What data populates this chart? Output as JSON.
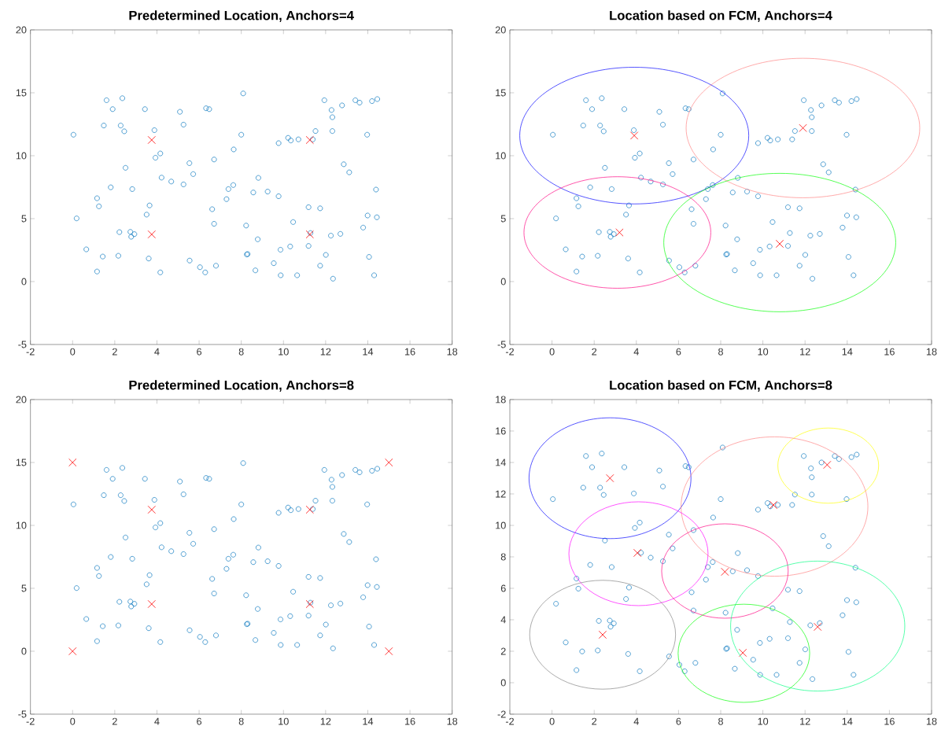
{
  "chart_data": [
    {
      "type": "scatter",
      "title": "Predetermined Location, Anchors=4",
      "xlim": [
        -2,
        18
      ],
      "ylim": [
        -5,
        20
      ],
      "xticks": [
        -2,
        0,
        2,
        4,
        6,
        8,
        10,
        12,
        14,
        16,
        18
      ],
      "yticks": [
        -5,
        0,
        5,
        10,
        15,
        20
      ],
      "series": [
        {
          "marker": "circle",
          "color": "#0072bd",
          "x": [
            0.04,
            0.19,
            0.65,
            1.16,
            1.16,
            1.25,
            1.43,
            1.48,
            1.61,
            1.9,
            1.81,
            2.17,
            2.22,
            2.28,
            2.36,
            2.45,
            2.51,
            2.74,
            2.78,
            2.93,
            2.83,
            3.43,
            3.51,
            3.61,
            3.65,
            3.88,
            3.93,
            4.16,
            4.16,
            4.22,
            4.68,
            5.09,
            5.26,
            5.26,
            5.54,
            5.55,
            5.72,
            6.04,
            6.29,
            6.33,
            6.48,
            6.62,
            6.71,
            6.71,
            6.8,
            7.3,
            7.39,
            7.62,
            7.64,
            8.0,
            8.09,
            8.23,
            8.26,
            8.3,
            8.57,
            8.67,
            8.78,
            8.81,
            9.25,
            9.54,
            9.77,
            9.77,
            9.86,
            9.87,
            10.22,
            10.35,
            10.32,
            10.46,
            10.65,
            10.71,
            11.19,
            11.19,
            11.28,
            11.39,
            11.52,
            11.74,
            11.74,
            11.94,
            12.01,
            12.25,
            12.28,
            12.32,
            12.32,
            12.35,
            12.7,
            12.78,
            12.86,
            13.12,
            13.41,
            13.61,
            13.78,
            13.97,
            13.99,
            14.06,
            14.2,
            14.3,
            14.39,
            14.43,
            14.45
          ],
          "values": [
            11.67,
            5.02,
            2.56,
            0.8,
            6.62,
            5.98,
            1.99,
            12.4,
            14.41,
            13.7,
            7.49,
            2.05,
            3.93,
            12.4,
            14.57,
            11.94,
            9.04,
            3.95,
            3.56,
            3.77,
            7.35,
            13.7,
            5.32,
            1.83,
            6.05,
            12.03,
            9.84,
            10.18,
            0.73,
            8.26,
            7.95,
            13.49,
            12.47,
            7.72,
            9.41,
            1.67,
            8.54,
            1.14,
            0.73,
            13.77,
            13.7,
            5.75,
            4.59,
            9.7,
            1.26,
            6.55,
            7.35,
            7.67,
            10.5,
            11.67,
            14.95,
            4.45,
            2.15,
            2.19,
            7.08,
            0.89,
            3.36,
            8.24,
            7.15,
            1.46,
            6.78,
            11.0,
            2.53,
            0.5,
            11.42,
            11.21,
            2.79,
            4.73,
            0.5,
            11.3,
            5.91,
            2.83,
            3.86,
            11.3,
            11.96,
            5.82,
            1.26,
            14.41,
            2.12,
            3.65,
            13.63,
            13.06,
            11.96,
            0.23,
            3.79,
            14.0,
            9.32,
            8.68,
            14.41,
            14.22,
            4.29,
            11.67,
            5.25,
            1.96,
            14.34,
            0.5,
            7.31,
            5.11,
            14.5
          ]
        },
        {
          "marker": "cross",
          "color": "#ff0000",
          "x": [
            3.75,
            11.25,
            3.75,
            11.25
          ],
          "values": [
            11.25,
            11.25,
            3.75,
            3.75
          ]
        }
      ]
    },
    {
      "type": "scatter",
      "title": "Location based on FCM, Anchors=4",
      "xlim": [
        -2,
        18
      ],
      "ylim": [
        -5,
        20
      ],
      "xticks": [
        -2,
        0,
        2,
        4,
        6,
        8,
        10,
        12,
        14,
        16,
        18
      ],
      "yticks": [
        -5,
        0,
        5,
        10,
        15,
        20
      ],
      "series": [
        {
          "marker": "circle",
          "color": "#0072bd",
          "x": [
            0.04,
            0.19,
            0.65,
            1.16,
            1.16,
            1.25,
            1.43,
            1.48,
            1.61,
            1.9,
            1.81,
            2.17,
            2.22,
            2.28,
            2.36,
            2.45,
            2.51,
            2.74,
            2.78,
            2.93,
            2.83,
            3.43,
            3.51,
            3.61,
            3.65,
            3.88,
            3.93,
            4.16,
            4.16,
            4.22,
            4.68,
            5.09,
            5.26,
            5.26,
            5.54,
            5.55,
            5.72,
            6.04,
            6.29,
            6.33,
            6.48,
            6.62,
            6.71,
            6.71,
            6.8,
            7.3,
            7.39,
            7.62,
            7.64,
            8.0,
            8.09,
            8.23,
            8.26,
            8.3,
            8.57,
            8.67,
            8.78,
            8.81,
            9.25,
            9.54,
            9.77,
            9.77,
            9.86,
            9.87,
            10.22,
            10.35,
            10.32,
            10.46,
            10.65,
            10.71,
            11.19,
            11.19,
            11.28,
            11.39,
            11.52,
            11.74,
            11.74,
            11.94,
            12.01,
            12.25,
            12.28,
            12.32,
            12.32,
            12.35,
            12.7,
            12.78,
            12.86,
            13.12,
            13.41,
            13.61,
            13.78,
            13.97,
            13.99,
            14.06,
            14.2,
            14.3,
            14.39,
            14.43,
            14.45
          ],
          "values": [
            11.67,
            5.02,
            2.56,
            0.8,
            6.62,
            5.98,
            1.99,
            12.4,
            14.41,
            13.7,
            7.49,
            2.05,
            3.93,
            12.4,
            14.57,
            11.94,
            9.04,
            3.95,
            3.56,
            3.77,
            7.35,
            13.7,
            5.32,
            1.83,
            6.05,
            12.03,
            9.84,
            10.18,
            0.73,
            8.26,
            7.95,
            13.49,
            12.47,
            7.72,
            9.41,
            1.67,
            8.54,
            1.14,
            0.73,
            13.77,
            13.7,
            5.75,
            4.59,
            9.7,
            1.26,
            6.55,
            7.35,
            7.67,
            10.5,
            11.67,
            14.95,
            4.45,
            2.15,
            2.19,
            7.08,
            0.89,
            3.36,
            8.24,
            7.15,
            1.46,
            6.78,
            11.0,
            2.53,
            0.5,
            11.42,
            11.21,
            2.79,
            4.73,
            0.5,
            11.3,
            5.91,
            2.83,
            3.86,
            11.3,
            11.96,
            5.82,
            1.26,
            14.41,
            2.12,
            3.65,
            13.63,
            13.06,
            11.96,
            0.23,
            3.79,
            14.0,
            9.32,
            8.68,
            14.41,
            14.22,
            4.29,
            11.67,
            5.25,
            1.96,
            14.34,
            0.5,
            7.31,
            5.11,
            14.5
          ]
        },
        {
          "marker": "cross",
          "color": "#ff0000",
          "x": [
            3.9,
            11.9,
            3.2,
            10.8
          ],
          "values": [
            11.6,
            12.2,
            3.9,
            3.0
          ]
        }
      ]
    },
    {
      "type": "scatter",
      "title": "Predetermined Location, Anchors=8",
      "xlim": [
        -2,
        18
      ],
      "ylim": [
        -5,
        20
      ],
      "xticks": [
        -2,
        0,
        2,
        4,
        6,
        8,
        10,
        12,
        14,
        16,
        18
      ],
      "yticks": [
        -5,
        0,
        5,
        10,
        15,
        20
      ],
      "series": [
        {
          "marker": "circle",
          "color": "#0072bd",
          "x": [
            0.04,
            0.19,
            0.65,
            1.16,
            1.16,
            1.25,
            1.43,
            1.48,
            1.61,
            1.9,
            1.81,
            2.17,
            2.22,
            2.28,
            2.36,
            2.45,
            2.51,
            2.74,
            2.78,
            2.93,
            2.83,
            3.43,
            3.51,
            3.61,
            3.65,
            3.88,
            3.93,
            4.16,
            4.16,
            4.22,
            4.68,
            5.09,
            5.26,
            5.26,
            5.54,
            5.55,
            5.72,
            6.04,
            6.29,
            6.33,
            6.48,
            6.62,
            6.71,
            6.71,
            6.8,
            7.3,
            7.39,
            7.62,
            7.64,
            8.0,
            8.09,
            8.23,
            8.26,
            8.3,
            8.57,
            8.67,
            8.78,
            8.81,
            9.25,
            9.54,
            9.77,
            9.77,
            9.86,
            9.87,
            10.22,
            10.35,
            10.32,
            10.46,
            10.65,
            10.71,
            11.19,
            11.19,
            11.28,
            11.39,
            11.52,
            11.74,
            11.74,
            11.94,
            12.01,
            12.25,
            12.28,
            12.32,
            12.32,
            12.35,
            12.7,
            12.78,
            12.86,
            13.12,
            13.41,
            13.61,
            13.78,
            13.97,
            13.99,
            14.06,
            14.2,
            14.3,
            14.39,
            14.43,
            14.45
          ],
          "values": [
            11.67,
            5.02,
            2.56,
            0.8,
            6.62,
            5.98,
            1.99,
            12.4,
            14.41,
            13.7,
            7.49,
            2.05,
            3.93,
            12.4,
            14.57,
            11.94,
            9.04,
            3.95,
            3.56,
            3.77,
            7.35,
            13.7,
            5.32,
            1.83,
            6.05,
            12.03,
            9.84,
            10.18,
            0.73,
            8.26,
            7.95,
            13.49,
            12.47,
            7.72,
            9.41,
            1.67,
            8.54,
            1.14,
            0.73,
            13.77,
            13.7,
            5.75,
            4.59,
            9.7,
            1.26,
            6.55,
            7.35,
            7.67,
            10.5,
            11.67,
            14.95,
            4.45,
            2.15,
            2.19,
            7.08,
            0.89,
            3.36,
            8.24,
            7.15,
            1.46,
            6.78,
            11.0,
            2.53,
            0.5,
            11.42,
            11.21,
            2.79,
            4.73,
            0.5,
            11.3,
            5.91,
            2.83,
            3.86,
            11.3,
            11.96,
            5.82,
            1.26,
            14.41,
            2.12,
            3.65,
            13.63,
            13.06,
            11.96,
            0.23,
            3.79,
            14.0,
            9.32,
            8.68,
            14.41,
            14.22,
            4.29,
            11.67,
            5.25,
            1.96,
            14.34,
            0.5,
            7.31,
            5.11,
            14.5
          ]
        },
        {
          "marker": "cross",
          "color": "#ff0000",
          "x": [
            0,
            0,
            15,
            15,
            3.75,
            3.75,
            11.25,
            11.25
          ],
          "values": [
            0,
            15,
            15,
            0,
            3.75,
            11.25,
            11.25,
            3.75
          ]
        }
      ]
    },
    {
      "type": "scatter",
      "title": "Location based on FCM, Anchors=8",
      "xlim": [
        -2,
        18
      ],
      "ylim": [
        -2,
        18
      ],
      "xticks": [
        -2,
        0,
        2,
        4,
        6,
        8,
        10,
        12,
        14,
        16,
        18
      ],
      "yticks": [
        -2,
        0,
        2,
        4,
        6,
        8,
        10,
        12,
        14,
        16,
        18
      ],
      "series": [
        {
          "marker": "circle",
          "color": "#0072bd",
          "x": [
            0.04,
            0.19,
            0.65,
            1.16,
            1.16,
            1.25,
            1.43,
            1.48,
            1.61,
            1.9,
            1.81,
            2.17,
            2.22,
            2.28,
            2.36,
            2.45,
            2.51,
            2.74,
            2.78,
            2.93,
            2.83,
            3.43,
            3.51,
            3.61,
            3.65,
            3.88,
            3.93,
            4.16,
            4.16,
            4.22,
            4.68,
            5.09,
            5.26,
            5.26,
            5.54,
            5.55,
            5.72,
            6.04,
            6.29,
            6.33,
            6.48,
            6.62,
            6.71,
            6.71,
            6.8,
            7.3,
            7.39,
            7.62,
            7.64,
            8.0,
            8.09,
            8.23,
            8.26,
            8.3,
            8.57,
            8.67,
            8.78,
            8.81,
            9.25,
            9.54,
            9.77,
            9.77,
            9.86,
            9.87,
            10.22,
            10.35,
            10.32,
            10.46,
            10.65,
            10.71,
            11.19,
            11.19,
            11.28,
            11.39,
            11.52,
            11.74,
            11.74,
            11.94,
            12.01,
            12.25,
            12.28,
            12.32,
            12.32,
            12.35,
            12.7,
            12.78,
            12.86,
            13.12,
            13.41,
            13.61,
            13.78,
            13.97,
            13.99,
            14.06,
            14.2,
            14.3,
            14.39,
            14.43,
            14.45
          ],
          "values": [
            11.67,
            5.02,
            2.56,
            0.8,
            6.62,
            5.98,
            1.99,
            12.4,
            14.41,
            13.7,
            7.49,
            2.05,
            3.93,
            12.4,
            14.57,
            11.94,
            9.04,
            3.95,
            3.56,
            3.77,
            7.35,
            13.7,
            5.32,
            1.83,
            6.05,
            12.03,
            9.84,
            10.18,
            0.73,
            8.26,
            7.95,
            13.49,
            12.47,
            7.72,
            9.41,
            1.67,
            8.54,
            1.14,
            0.73,
            13.77,
            13.7,
            5.75,
            4.59,
            9.7,
            1.26,
            6.55,
            7.35,
            7.67,
            10.5,
            11.67,
            14.95,
            4.45,
            2.15,
            2.19,
            7.08,
            0.89,
            3.36,
            8.24,
            7.15,
            1.46,
            6.78,
            11.0,
            2.53,
            0.5,
            11.42,
            11.21,
            2.79,
            4.73,
            0.5,
            11.3,
            5.91,
            2.83,
            3.86,
            11.3,
            11.96,
            5.82,
            1.26,
            14.41,
            2.12,
            3.65,
            13.63,
            13.06,
            11.96,
            0.23,
            3.79,
            14.0,
            9.32,
            8.68,
            14.41,
            14.22,
            4.29,
            11.67,
            5.25,
            1.96,
            14.34,
            0.5,
            7.31,
            5.11,
            14.5
          ]
        },
        {
          "marker": "cross",
          "color": "#ff0000",
          "x": [
            2.75,
            13.05,
            10.5,
            4.05,
            8.2,
            2.4,
            12.6,
            9.05
          ],
          "values": [
            13.0,
            13.85,
            11.3,
            8.25,
            7.05,
            3.05,
            3.55,
            1.9
          ]
        }
      ]
    }
  ]
}
